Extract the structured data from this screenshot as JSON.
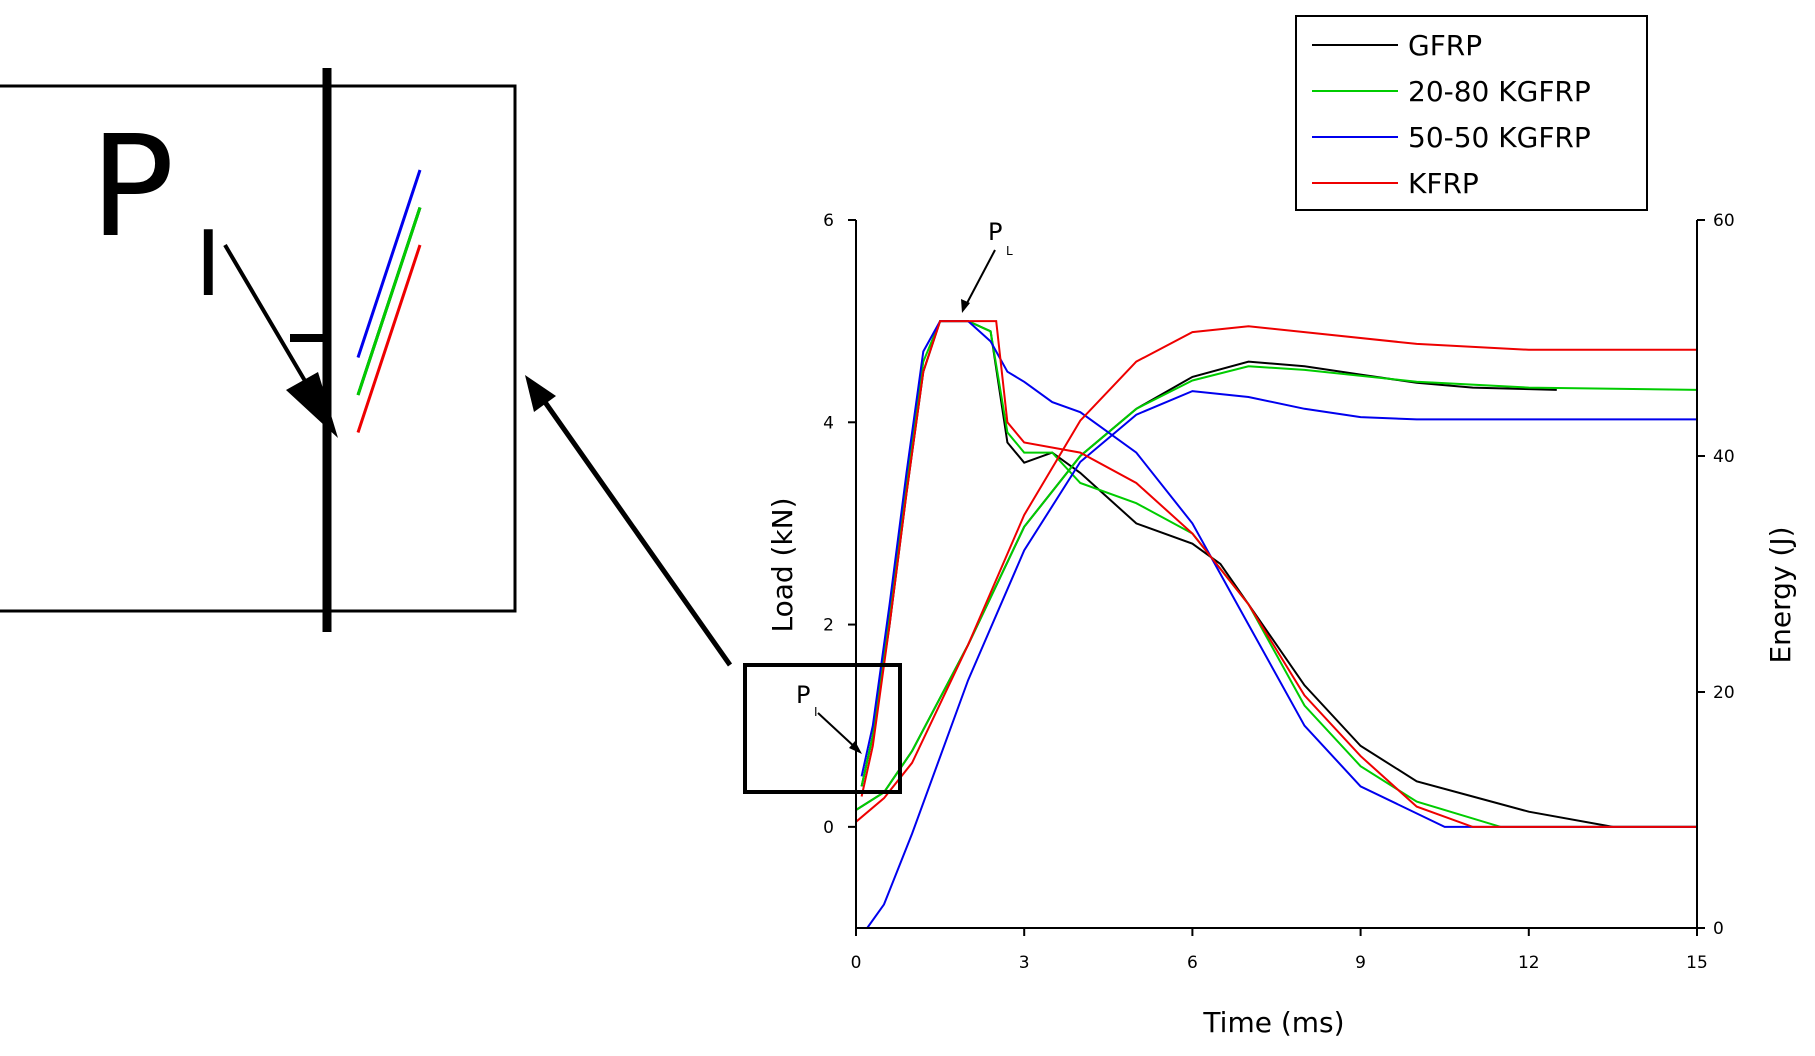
{
  "chart_data": {
    "type": "line",
    "xlabel": "Time (ms)",
    "ylabel_left": "Load (kN)",
    "ylabel_right": "Energy (J)",
    "xlim": [
      0,
      15
    ],
    "ylim_left": [
      -1,
      6
    ],
    "ylim_right": [
      0,
      60
    ],
    "x_ticks": [
      "0",
      "3",
      "6",
      "9",
      "12",
      "15"
    ],
    "y_left_ticks": [
      "0",
      "2",
      "4",
      "6"
    ],
    "y_right_ticks": [
      "0",
      "20",
      "40",
      "60"
    ],
    "legend_position": "top-right",
    "legend": [
      {
        "label": "GFRP",
        "color": "#000000"
      },
      {
        "label": "20-80  KGFRP",
        "color": "#00cc00"
      },
      {
        "label": "50-50 KGFRP",
        "color": "#0000ee"
      },
      {
        "label": "KFRP",
        "color": "#ee0000"
      }
    ],
    "annotations": {
      "initiation": "P",
      "initiation_sub": "I",
      "peak": "P",
      "peak_sub": "L"
    },
    "series": [
      {
        "name": "GFRP",
        "color": "#000000",
        "load_kN": [
          [
            0.1,
            0.4
          ],
          [
            0.3,
            0.9
          ],
          [
            0.6,
            2.0
          ],
          [
            0.9,
            3.3
          ],
          [
            1.2,
            4.5
          ],
          [
            1.5,
            5.0
          ],
          [
            2.0,
            5.0
          ],
          [
            2.4,
            4.9
          ],
          [
            2.7,
            3.8
          ],
          [
            3.0,
            3.6
          ],
          [
            3.5,
            3.7
          ],
          [
            4.0,
            3.5
          ],
          [
            5.0,
            3.0
          ],
          [
            6.0,
            2.8
          ],
          [
            6.5,
            2.6
          ],
          [
            7.0,
            2.2
          ],
          [
            8.0,
            1.4
          ],
          [
            9.0,
            0.8
          ],
          [
            10.0,
            0.45
          ],
          [
            11.0,
            0.3
          ],
          [
            12.0,
            0.15
          ],
          [
            13.5,
            0.0
          ],
          [
            15.0,
            0.0
          ]
        ],
        "energy_J": [
          [
            0.0,
            10.0
          ],
          [
            0.5,
            11.5
          ],
          [
            1.0,
            15.0
          ],
          [
            2.0,
            24.0
          ],
          [
            3.0,
            34.0
          ],
          [
            4.0,
            40.0
          ],
          [
            5.0,
            44.0
          ],
          [
            6.0,
            46.7
          ],
          [
            7.0,
            48.0
          ],
          [
            8.0,
            47.6
          ],
          [
            9.0,
            46.9
          ],
          [
            10.0,
            46.2
          ],
          [
            11.0,
            45.8
          ],
          [
            12.5,
            45.6
          ]
        ]
      },
      {
        "name": "20-80  KGFRP",
        "color": "#00cc00",
        "load_kN": [
          [
            0.1,
            0.4
          ],
          [
            0.3,
            0.9
          ],
          [
            0.6,
            2.1
          ],
          [
            0.9,
            3.4
          ],
          [
            1.2,
            4.6
          ],
          [
            1.5,
            5.0
          ],
          [
            2.0,
            5.0
          ],
          [
            2.4,
            4.9
          ],
          [
            2.7,
            3.9
          ],
          [
            3.0,
            3.7
          ],
          [
            3.5,
            3.7
          ],
          [
            4.0,
            3.4
          ],
          [
            5.0,
            3.2
          ],
          [
            6.0,
            2.9
          ],
          [
            7.0,
            2.2
          ],
          [
            8.0,
            1.2
          ],
          [
            9.0,
            0.6
          ],
          [
            10.0,
            0.25
          ],
          [
            11.5,
            0.0
          ],
          [
            15.0,
            0.0
          ]
        ],
        "energy_J": [
          [
            0.0,
            10.0
          ],
          [
            0.5,
            11.5
          ],
          [
            1.0,
            15.0
          ],
          [
            2.0,
            24.0
          ],
          [
            3.0,
            34.0
          ],
          [
            4.0,
            40.0
          ],
          [
            5.0,
            44.0
          ],
          [
            6.0,
            46.4
          ],
          [
            7.0,
            47.6
          ],
          [
            8.0,
            47.3
          ],
          [
            10.0,
            46.3
          ],
          [
            12.0,
            45.8
          ],
          [
            15.0,
            45.6
          ]
        ]
      },
      {
        "name": "50-50 KGFRP",
        "color": "#0000ee",
        "load_kN": [
          [
            0.1,
            0.5
          ],
          [
            0.3,
            1.0
          ],
          [
            0.6,
            2.2
          ],
          [
            0.9,
            3.5
          ],
          [
            1.2,
            4.7
          ],
          [
            1.5,
            5.0
          ],
          [
            2.0,
            5.0
          ],
          [
            2.4,
            4.8
          ],
          [
            2.7,
            4.5
          ],
          [
            3.0,
            4.4
          ],
          [
            3.5,
            4.2
          ],
          [
            4.0,
            4.1
          ],
          [
            5.0,
            3.7
          ],
          [
            6.0,
            3.0
          ],
          [
            7.0,
            2.0
          ],
          [
            8.0,
            1.0
          ],
          [
            9.0,
            0.4
          ],
          [
            10.5,
            0.0
          ],
          [
            15.0,
            0.0
          ]
        ],
        "energy_J": [
          [
            0.2,
            0.0
          ],
          [
            0.5,
            2.0
          ],
          [
            1.0,
            8.0
          ],
          [
            2.0,
            21.0
          ],
          [
            3.0,
            32.0
          ],
          [
            4.0,
            39.5
          ],
          [
            5.0,
            43.5
          ],
          [
            6.0,
            45.5
          ],
          [
            7.0,
            45.0
          ],
          [
            8.0,
            44.0
          ],
          [
            9.0,
            43.3
          ],
          [
            10.0,
            43.1
          ],
          [
            15.0,
            43.1
          ]
        ]
      },
      {
        "name": "KFRP",
        "color": "#ee0000",
        "load_kN": [
          [
            0.1,
            0.3
          ],
          [
            0.3,
            0.8
          ],
          [
            0.6,
            2.0
          ],
          [
            0.9,
            3.3
          ],
          [
            1.2,
            4.5
          ],
          [
            1.5,
            5.0
          ],
          [
            2.5,
            5.0
          ],
          [
            2.7,
            4.0
          ],
          [
            3.0,
            3.8
          ],
          [
            4.0,
            3.7
          ],
          [
            5.0,
            3.4
          ],
          [
            6.0,
            2.9
          ],
          [
            7.0,
            2.2
          ],
          [
            8.0,
            1.3
          ],
          [
            9.0,
            0.7
          ],
          [
            10.0,
            0.2
          ],
          [
            11.0,
            0.0
          ],
          [
            15.0,
            0.0
          ]
        ],
        "energy_J": [
          [
            0.0,
            9.0
          ],
          [
            0.5,
            11.0
          ],
          [
            1.0,
            14.0
          ],
          [
            2.0,
            24.0
          ],
          [
            3.0,
            35.0
          ],
          [
            4.0,
            43.0
          ],
          [
            5.0,
            48.0
          ],
          [
            6.0,
            50.5
          ],
          [
            7.0,
            51.0
          ],
          [
            8.0,
            50.5
          ],
          [
            10.0,
            49.5
          ],
          [
            12.0,
            49.0
          ],
          [
            15.0,
            49.0
          ]
        ]
      }
    ]
  }
}
